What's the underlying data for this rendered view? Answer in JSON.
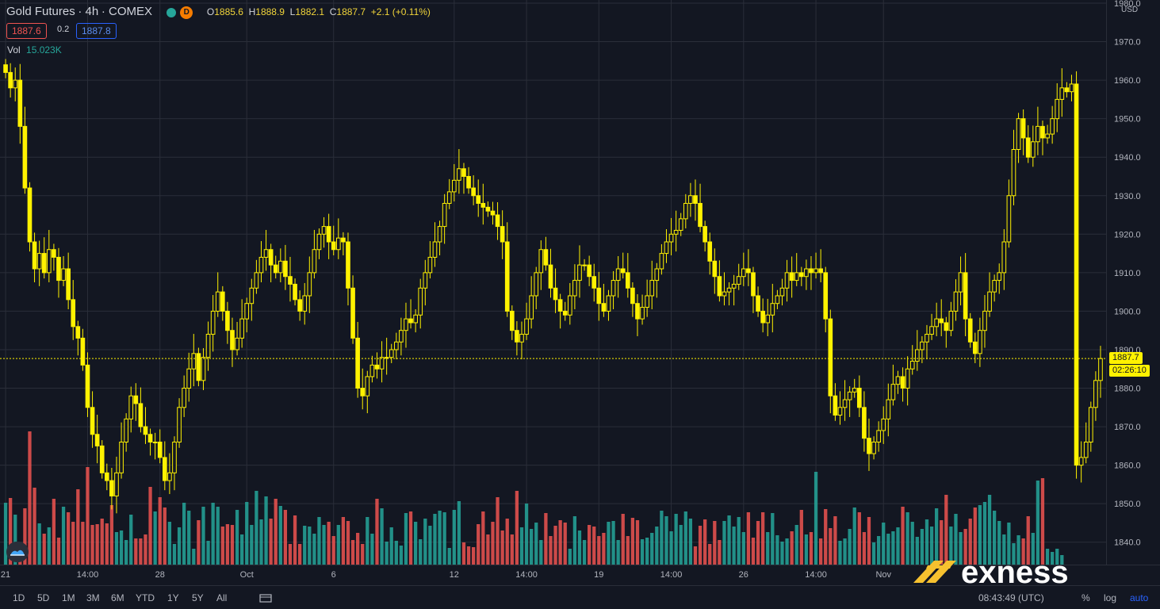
{
  "header": {
    "symbol": "Gold Futures",
    "interval": "4h",
    "exchange": "COMEX",
    "badge": "D",
    "open": "1885.6",
    "high": "1888.9",
    "low": "1882.1",
    "close": "1887.7",
    "change": "+2.1 (+0.11%)",
    "bid": "1887.6",
    "spread": "0.2",
    "ask": "1887.8",
    "vol_label": "Vol",
    "vol_value": "15.023K"
  },
  "price_axis": {
    "currency": "USD",
    "current_price": "1887.7",
    "countdown": "02:26:10"
  },
  "timeframes": [
    "1D",
    "5D",
    "1M",
    "3M",
    "6M",
    "YTD",
    "1Y",
    "5Y",
    "All"
  ],
  "bottom": {
    "time": "08:43:49 (UTC)",
    "percent": "%",
    "log": "log",
    "auto": "auto"
  },
  "brand": "exness",
  "colors": {
    "candle": "#fff200",
    "vol_up": "#26a69a",
    "vol_down": "#ef5350",
    "background": "#131722",
    "grid": "#2a2e39"
  },
  "chart_data": {
    "type": "candlestick",
    "title": "Gold Futures · 4h · COMEX",
    "ylabel": "USD",
    "ylim": [
      1835,
      1980
    ],
    "y_ticks": [
      1840.0,
      1850.0,
      1860.0,
      1870.0,
      1880.0,
      1890.0,
      1900.0,
      1910.0,
      1920.0,
      1930.0,
      1940.0,
      1950.0,
      1960.0,
      1970.0,
      1980.0
    ],
    "x_ticks": [
      "21",
      "14:00",
      "28",
      "Oct",
      "6",
      "12",
      "14:00",
      "19",
      "14:00",
      "26",
      "14:00",
      "Nov"
    ],
    "x_tick_index": [
      0,
      17,
      32,
      50,
      68,
      93,
      108,
      123,
      138,
      153,
      168,
      182
    ],
    "series": [
      {
        "name": "Gold Futures",
        "values": [
          1962,
          1958,
          1960,
          1948,
          1932,
          1918,
          1911,
          1915,
          1910,
          1916,
          1914,
          1908,
          1911,
          1903,
          1896,
          1893,
          1886,
          1875,
          1868,
          1865,
          1858,
          1856,
          1852,
          1858,
          1866,
          1872,
          1878,
          1876,
          1870,
          1868,
          1866,
          1866,
          1862,
          1856,
          1858,
          1866,
          1875,
          1880,
          1885,
          1889,
          1882,
          1888,
          1894,
          1900,
          1905,
          1900,
          1895,
          1890,
          1893,
          1898,
          1902,
          1906,
          1910,
          1914,
          1916,
          1912,
          1910,
          1913,
          1909,
          1907,
          1903,
          1900,
          1904,
          1910,
          1916,
          1920,
          1922,
          1918,
          1916,
          1919,
          1918,
          1906,
          1893,
          1880,
          1878,
          1883,
          1886,
          1885,
          1888,
          1888,
          1890,
          1892,
          1895,
          1898,
          1897,
          1899,
          1906,
          1910,
          1914,
          1918,
          1922,
          1928,
          1931,
          1934,
          1937,
          1935,
          1932,
          1930,
          1928,
          1927,
          1926,
          1925,
          1922,
          1918,
          1900,
          1895,
          1892,
          1894,
          1898,
          1904,
          1910,
          1916,
          1912,
          1906,
          1903,
          1900,
          1899,
          1904,
          1908,
          1912,
          1912,
          1909,
          1906,
          1902,
          1900,
          1904,
          1908,
          1911,
          1910,
          1906,
          1902,
          1898,
          1901,
          1904,
          1908,
          1911,
          1915,
          1918,
          1920,
          1921,
          1924,
          1928,
          1930,
          1928,
          1922,
          1918,
          1913,
          1909,
          1904,
          1905,
          1906,
          1907,
          1909,
          1911,
          1910,
          1904,
          1900,
          1897,
          1899,
          1902,
          1904,
          1906,
          1910,
          1908,
          1910,
          1909,
          1911,
          1910,
          1911,
          1910,
          1898,
          1878,
          1873,
          1875,
          1877,
          1879,
          1880,
          1875,
          1867,
          1863,
          1866,
          1869,
          1872,
          1877,
          1881,
          1883,
          1880,
          1885,
          1887,
          1890,
          1892,
          1894,
          1896,
          1898,
          1897,
          1895,
          1900,
          1905,
          1910,
          1898,
          1892,
          1889,
          1895,
          1900,
          1905,
          1908,
          1910,
          1918,
          1930,
          1942,
          1950,
          1945,
          1940,
          1944,
          1948,
          1945,
          1946,
          1950,
          1955,
          1958,
          1957,
          1959,
          1860,
          1862,
          1866,
          1875,
          1882,
          1887.7
        ]
      }
    ],
    "volume": [
      78,
      84,
      63,
      22,
      71,
      168,
      97,
      52,
      39,
      47,
      83,
      34,
      73,
      66,
      54,
      95,
      54,
      123,
      50,
      51,
      58,
      52,
      75,
      41,
      43,
      31,
      63,
      33,
      33,
      38,
      98,
      67,
      85,
      72,
      54,
      26,
      47,
      78,
      68,
      20,
      56,
      73,
      30,
      78,
      73,
      48,
      51,
      50,
      69,
      38,
      79,
      50,
      93,
      57,
      86,
      58,
      83,
      74,
      69,
      26,
      62,
      26,
      49,
      48,
      39,
      60,
      50,
      54,
      36,
      50,
      60,
      55,
      31,
      40,
      26,
      60,
      39,
      83,
      71,
      29,
      47,
      30,
      24,
      65,
      67,
      54,
      32,
      58,
      49,
      64,
      68,
      66,
      21,
      69,
      80,
      28,
      23,
      22,
      51,
      67,
      38,
      54,
      85,
      43,
      58,
      38,
      93,
      47,
      77,
      45,
      53,
      31,
      65,
      36,
      49,
      56,
      53,
      20,
      61,
      43,
      31,
      50,
      48,
      36,
      40,
      54,
      55,
      31,
      64,
      36,
      59,
      56,
      32,
      34,
      40,
      48,
      68,
      61,
      42,
      64,
      50,
      67,
      58,
      23,
      49,
      57,
      26,
      55,
      31,
      55,
      62,
      48,
      60,
      41,
      66,
      34,
      55,
      66,
      41,
      65,
      37,
      29,
      33,
      42,
      50,
      69,
      38,
      41,
      117,
      33,
      70,
      46,
      61,
      30,
      33,
      45,
      72,
      66,
      41,
      60,
      28,
      36,
      53,
      39,
      42,
      47,
      73,
      66,
      54,
      35,
      45,
      57,
      48,
      71,
      56,
      88,
      48,
      64,
      41,
      45,
      58,
      72,
      75,
      79,
      88,
      68,
      55,
      38,
      53,
      27,
      37,
      33,
      61,
      40,
      106,
      109,
      20,
      16,
      20,
      12
    ]
  }
}
